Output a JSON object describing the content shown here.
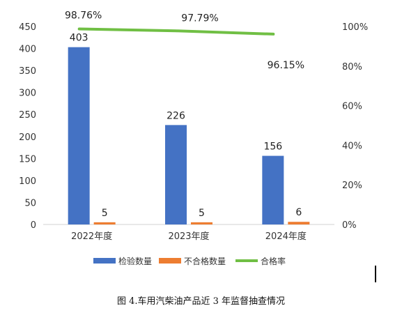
{
  "chart_data": {
    "type": "bar",
    "categories": [
      "2022年度",
      "2023年度",
      "2024年度"
    ],
    "series": [
      {
        "name": "检验数量",
        "kind": "bar",
        "axis": "left",
        "color": "#4472C4",
        "values": [
          403,
          226,
          156
        ]
      },
      {
        "name": "不合格数量",
        "kind": "bar",
        "axis": "left",
        "color": "#ED7D31",
        "values": [
          5,
          5,
          6
        ]
      },
      {
        "name": "合格率",
        "kind": "line",
        "axis": "right",
        "color": "#70BF44",
        "values": [
          98.76,
          97.79,
          96.15
        ]
      }
    ],
    "bar_labels": [
      [
        "403",
        "226",
        "156"
      ],
      [
        "5",
        "5",
        "6"
      ]
    ],
    "line_labels": [
      "98.76%",
      "97.79%",
      "96.15%"
    ],
    "y_left": {
      "min": 0,
      "max": 450,
      "ticks": [
        "0",
        "50",
        "100",
        "150",
        "200",
        "250",
        "300",
        "350",
        "400",
        "450"
      ]
    },
    "y_right": {
      "min": 0,
      "max": 100,
      "ticks": [
        "0%",
        "20%",
        "40%",
        "60%",
        "80%",
        "100%"
      ]
    },
    "legend_position": "bottom",
    "grid": false
  },
  "caption": "图 4.车用汽柴油产品近 3 年监督抽查情况"
}
